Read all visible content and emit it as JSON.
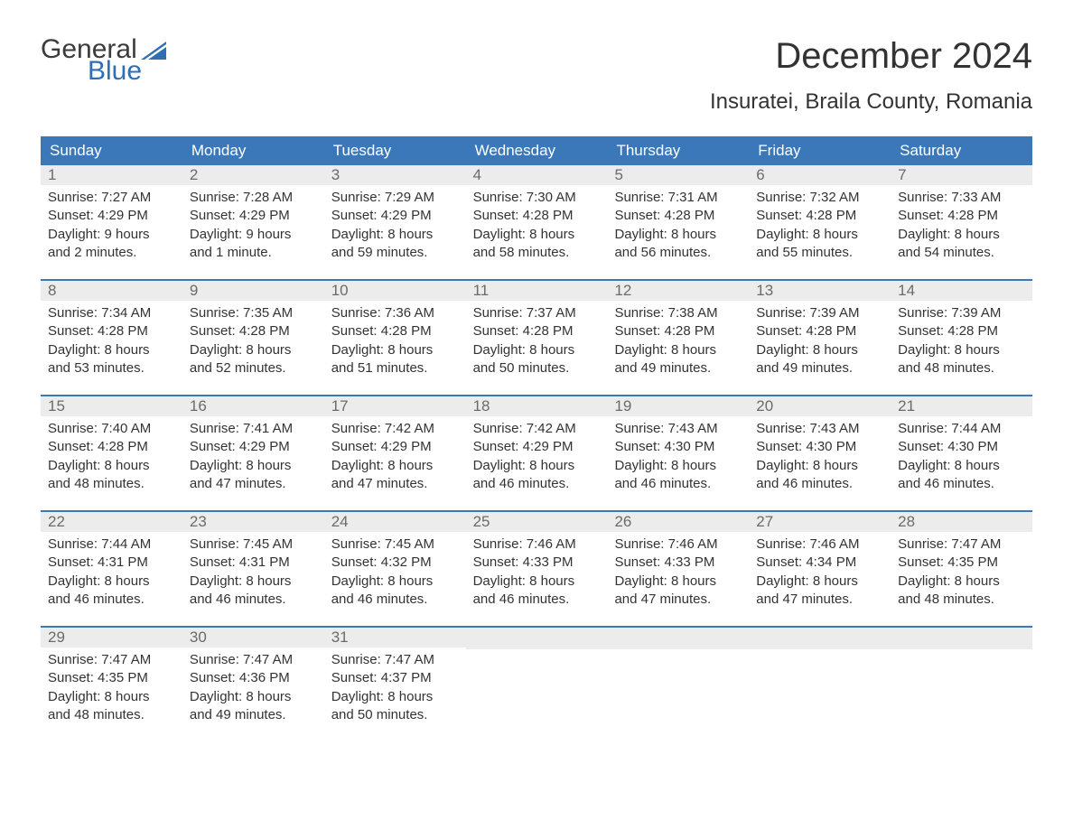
{
  "logo": {
    "text_general": "General",
    "text_blue": "Blue",
    "flag_color": "#2f6fb3",
    "text_color_gray": "#3b3b3b"
  },
  "title": "December 2024",
  "location": "Insuratei, Braila County, Romania",
  "colors": {
    "header_bg": "#3a78b9",
    "header_text": "#ffffff",
    "daynum_bg": "#ececec",
    "daynum_text": "#6b6b6b",
    "body_text": "#333333",
    "week_border": "#3a78b9",
    "page_bg": "#ffffff"
  },
  "typography": {
    "title_fontsize": 40,
    "location_fontsize": 24,
    "dayheader_fontsize": 17,
    "daynum_fontsize": 17,
    "content_fontsize": 15
  },
  "day_headers": [
    "Sunday",
    "Monday",
    "Tuesday",
    "Wednesday",
    "Thursday",
    "Friday",
    "Saturday"
  ],
  "weeks": [
    [
      {
        "num": "1",
        "sunrise": "Sunrise: 7:27 AM",
        "sunset": "Sunset: 4:29 PM",
        "daylight1": "Daylight: 9 hours",
        "daylight2": "and 2 minutes."
      },
      {
        "num": "2",
        "sunrise": "Sunrise: 7:28 AM",
        "sunset": "Sunset: 4:29 PM",
        "daylight1": "Daylight: 9 hours",
        "daylight2": "and 1 minute."
      },
      {
        "num": "3",
        "sunrise": "Sunrise: 7:29 AM",
        "sunset": "Sunset: 4:29 PM",
        "daylight1": "Daylight: 8 hours",
        "daylight2": "and 59 minutes."
      },
      {
        "num": "4",
        "sunrise": "Sunrise: 7:30 AM",
        "sunset": "Sunset: 4:28 PM",
        "daylight1": "Daylight: 8 hours",
        "daylight2": "and 58 minutes."
      },
      {
        "num": "5",
        "sunrise": "Sunrise: 7:31 AM",
        "sunset": "Sunset: 4:28 PM",
        "daylight1": "Daylight: 8 hours",
        "daylight2": "and 56 minutes."
      },
      {
        "num": "6",
        "sunrise": "Sunrise: 7:32 AM",
        "sunset": "Sunset: 4:28 PM",
        "daylight1": "Daylight: 8 hours",
        "daylight2": "and 55 minutes."
      },
      {
        "num": "7",
        "sunrise": "Sunrise: 7:33 AM",
        "sunset": "Sunset: 4:28 PM",
        "daylight1": "Daylight: 8 hours",
        "daylight2": "and 54 minutes."
      }
    ],
    [
      {
        "num": "8",
        "sunrise": "Sunrise: 7:34 AM",
        "sunset": "Sunset: 4:28 PM",
        "daylight1": "Daylight: 8 hours",
        "daylight2": "and 53 minutes."
      },
      {
        "num": "9",
        "sunrise": "Sunrise: 7:35 AM",
        "sunset": "Sunset: 4:28 PM",
        "daylight1": "Daylight: 8 hours",
        "daylight2": "and 52 minutes."
      },
      {
        "num": "10",
        "sunrise": "Sunrise: 7:36 AM",
        "sunset": "Sunset: 4:28 PM",
        "daylight1": "Daylight: 8 hours",
        "daylight2": "and 51 minutes."
      },
      {
        "num": "11",
        "sunrise": "Sunrise: 7:37 AM",
        "sunset": "Sunset: 4:28 PM",
        "daylight1": "Daylight: 8 hours",
        "daylight2": "and 50 minutes."
      },
      {
        "num": "12",
        "sunrise": "Sunrise: 7:38 AM",
        "sunset": "Sunset: 4:28 PM",
        "daylight1": "Daylight: 8 hours",
        "daylight2": "and 49 minutes."
      },
      {
        "num": "13",
        "sunrise": "Sunrise: 7:39 AM",
        "sunset": "Sunset: 4:28 PM",
        "daylight1": "Daylight: 8 hours",
        "daylight2": "and 49 minutes."
      },
      {
        "num": "14",
        "sunrise": "Sunrise: 7:39 AM",
        "sunset": "Sunset: 4:28 PM",
        "daylight1": "Daylight: 8 hours",
        "daylight2": "and 48 minutes."
      }
    ],
    [
      {
        "num": "15",
        "sunrise": "Sunrise: 7:40 AM",
        "sunset": "Sunset: 4:28 PM",
        "daylight1": "Daylight: 8 hours",
        "daylight2": "and 48 minutes."
      },
      {
        "num": "16",
        "sunrise": "Sunrise: 7:41 AM",
        "sunset": "Sunset: 4:29 PM",
        "daylight1": "Daylight: 8 hours",
        "daylight2": "and 47 minutes."
      },
      {
        "num": "17",
        "sunrise": "Sunrise: 7:42 AM",
        "sunset": "Sunset: 4:29 PM",
        "daylight1": "Daylight: 8 hours",
        "daylight2": "and 47 minutes."
      },
      {
        "num": "18",
        "sunrise": "Sunrise: 7:42 AM",
        "sunset": "Sunset: 4:29 PM",
        "daylight1": "Daylight: 8 hours",
        "daylight2": "and 46 minutes."
      },
      {
        "num": "19",
        "sunrise": "Sunrise: 7:43 AM",
        "sunset": "Sunset: 4:30 PM",
        "daylight1": "Daylight: 8 hours",
        "daylight2": "and 46 minutes."
      },
      {
        "num": "20",
        "sunrise": "Sunrise: 7:43 AM",
        "sunset": "Sunset: 4:30 PM",
        "daylight1": "Daylight: 8 hours",
        "daylight2": "and 46 minutes."
      },
      {
        "num": "21",
        "sunrise": "Sunrise: 7:44 AM",
        "sunset": "Sunset: 4:30 PM",
        "daylight1": "Daylight: 8 hours",
        "daylight2": "and 46 minutes."
      }
    ],
    [
      {
        "num": "22",
        "sunrise": "Sunrise: 7:44 AM",
        "sunset": "Sunset: 4:31 PM",
        "daylight1": "Daylight: 8 hours",
        "daylight2": "and 46 minutes."
      },
      {
        "num": "23",
        "sunrise": "Sunrise: 7:45 AM",
        "sunset": "Sunset: 4:31 PM",
        "daylight1": "Daylight: 8 hours",
        "daylight2": "and 46 minutes."
      },
      {
        "num": "24",
        "sunrise": "Sunrise: 7:45 AM",
        "sunset": "Sunset: 4:32 PM",
        "daylight1": "Daylight: 8 hours",
        "daylight2": "and 46 minutes."
      },
      {
        "num": "25",
        "sunrise": "Sunrise: 7:46 AM",
        "sunset": "Sunset: 4:33 PM",
        "daylight1": "Daylight: 8 hours",
        "daylight2": "and 46 minutes."
      },
      {
        "num": "26",
        "sunrise": "Sunrise: 7:46 AM",
        "sunset": "Sunset: 4:33 PM",
        "daylight1": "Daylight: 8 hours",
        "daylight2": "and 47 minutes."
      },
      {
        "num": "27",
        "sunrise": "Sunrise: 7:46 AM",
        "sunset": "Sunset: 4:34 PM",
        "daylight1": "Daylight: 8 hours",
        "daylight2": "and 47 minutes."
      },
      {
        "num": "28",
        "sunrise": "Sunrise: 7:47 AM",
        "sunset": "Sunset: 4:35 PM",
        "daylight1": "Daylight: 8 hours",
        "daylight2": "and 48 minutes."
      }
    ],
    [
      {
        "num": "29",
        "sunrise": "Sunrise: 7:47 AM",
        "sunset": "Sunset: 4:35 PM",
        "daylight1": "Daylight: 8 hours",
        "daylight2": "and 48 minutes."
      },
      {
        "num": "30",
        "sunrise": "Sunrise: 7:47 AM",
        "sunset": "Sunset: 4:36 PM",
        "daylight1": "Daylight: 8 hours",
        "daylight2": "and 49 minutes."
      },
      {
        "num": "31",
        "sunrise": "Sunrise: 7:47 AM",
        "sunset": "Sunset: 4:37 PM",
        "daylight1": "Daylight: 8 hours",
        "daylight2": "and 50 minutes."
      },
      null,
      null,
      null,
      null
    ]
  ]
}
